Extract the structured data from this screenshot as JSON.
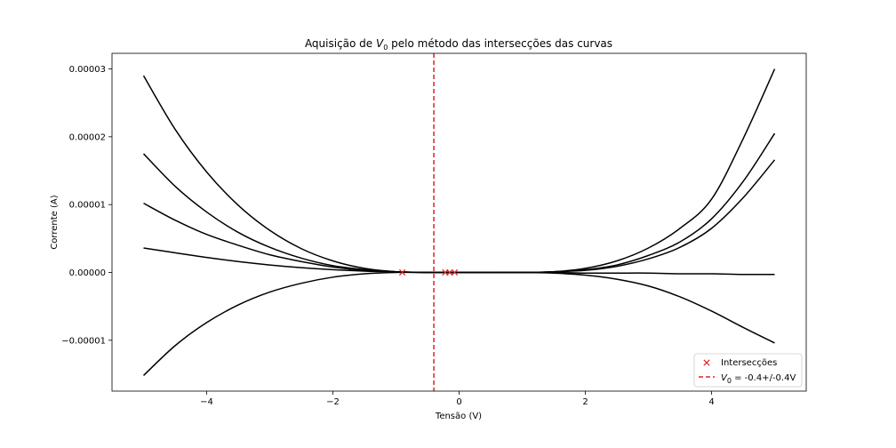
{
  "chart_data": {
    "type": "line",
    "title_prefix": "Aquisição de",
    "title_symbol": "V",
    "title_subscript": "0",
    "title_suffix": "pelo método das intersecções das curvas",
    "xlabel": "Tensão (V)",
    "ylabel": "Corrente (A)",
    "xlim": [
      -5.5,
      5.5
    ],
    "ylim": [
      -1.75e-05,
      3.23e-05
    ],
    "xticks": [
      -4,
      -2,
      0,
      2,
      4
    ],
    "xtick_labels": [
      "−4",
      "−2",
      "0",
      "2",
      "4"
    ],
    "yticks": [
      -1e-05,
      0,
      1e-05,
      2e-05,
      3e-05
    ],
    "ytick_labels": [
      "−0.00001",
      "0.00000",
      "0.00001",
      "0.00002",
      "0.00003"
    ],
    "grid": false,
    "legend_position": "lower-right",
    "x": [
      -5,
      -4.5,
      -4,
      -3.5,
      -3,
      -2.5,
      -2,
      -1.5,
      -1,
      -0.5,
      0,
      0.5,
      1,
      1.5,
      2,
      2.5,
      3,
      3.5,
      4,
      4.5,
      5
    ],
    "series": [
      {
        "values": [
          2.9e-05,
          2.11e-05,
          1.48e-05,
          9.9e-06,
          6.2e-06,
          3.5e-06,
          1.7e-06,
          6e-07,
          1e-07,
          0,
          0,
          0,
          0,
          1e-07,
          6e-07,
          1.7e-06,
          3.6e-06,
          6.5e-06,
          1.08e-05,
          1.97e-05,
          3e-05
        ],
        "color": "#000000"
      },
      {
        "values": [
          1.75e-05,
          1.27e-05,
          8.9e-06,
          5.9e-06,
          3.7e-06,
          2.1e-06,
          1e-06,
          4e-07,
          1e-07,
          0,
          0,
          0,
          0,
          1e-07,
          4e-07,
          1.1e-06,
          2.5e-06,
          4.5e-06,
          7.9e-06,
          1.34e-05,
          2.05e-05
        ],
        "color": "#000000"
      },
      {
        "values": [
          1.02e-05,
          7.7e-06,
          5.6e-06,
          4e-06,
          2.6e-06,
          1.6e-06,
          8e-07,
          3e-07,
          1e-07,
          0,
          0,
          0,
          0,
          1e-07,
          3e-07,
          9e-07,
          2e-06,
          3.7e-06,
          6.5e-06,
          1.1e-05,
          1.66e-05
        ],
        "color": "#000000"
      },
      {
        "values": [
          3.6e-06,
          2.9e-06,
          2.2e-06,
          1.6e-06,
          1.1e-06,
          7e-07,
          4e-07,
          2e-07,
          1e-07,
          0,
          0,
          0,
          0,
          0,
          -1e-07,
          -1e-07,
          -1e-07,
          -2e-07,
          -2e-07,
          -3e-07,
          -3e-07
        ],
        "color": "#000000"
      },
      {
        "values": [
          -1.52e-05,
          -1.08e-05,
          -7.4e-06,
          -4.8e-06,
          -2.9e-06,
          -1.6e-06,
          -7e-07,
          -2e-07,
          0,
          0,
          0,
          0,
          0,
          -1e-07,
          -4e-07,
          -1e-06,
          -2e-06,
          -3.6e-06,
          -5.7e-06,
          -8.1e-06,
          -1.04e-05
        ],
        "color": "#000000"
      }
    ],
    "intersections": {
      "x": [
        -0.9,
        -0.22,
        -0.15,
        -0.07
      ],
      "y": [
        0,
        0,
        0,
        0
      ],
      "color": "#d62728"
    },
    "v0_line": {
      "x": -0.4,
      "color": "#d62728"
    },
    "legend": {
      "intersections_label": "Intersecções",
      "v0_symbol": "V",
      "v0_subscript": "0",
      "v0_text": " = -0.4+/-0.4V"
    }
  }
}
